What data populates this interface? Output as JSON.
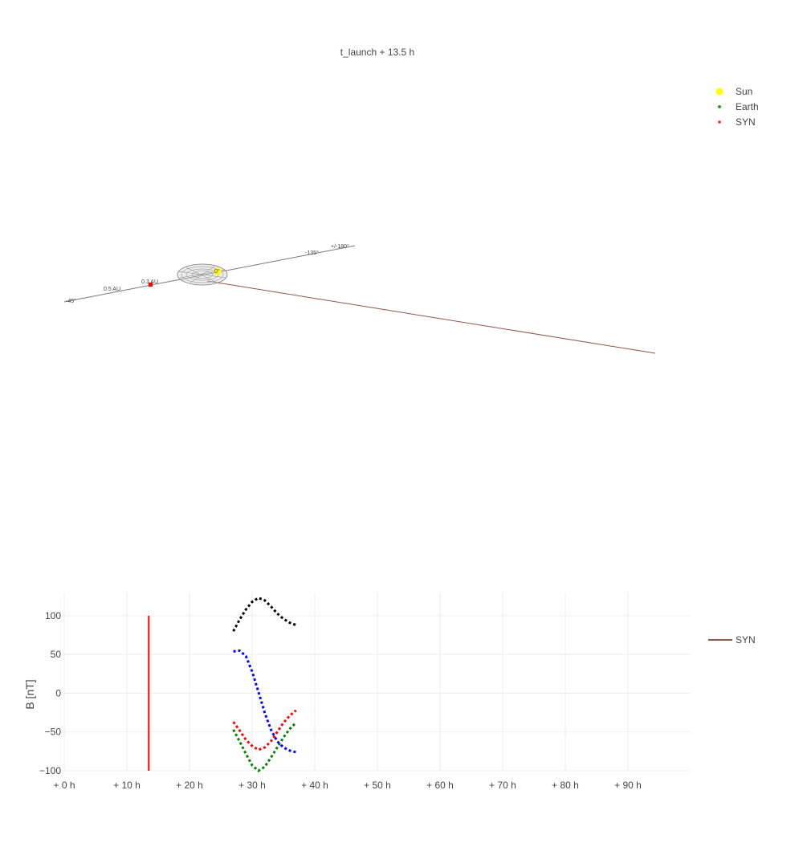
{
  "title": "t_launch + 13.5 h",
  "chart_data": [
    {
      "type": "scatter",
      "kind": "3d-orbit-scene",
      "legend_position": "top-right",
      "legend": [
        {
          "name": "Sun",
          "color": "#ffff00",
          "marker": "circle-large"
        },
        {
          "name": "Earth",
          "color": "#2ca02c",
          "marker": "circle-small"
        },
        {
          "name": "SYN",
          "color": "#ff0000",
          "marker": "square-small"
        }
      ],
      "annotations": [
        "0.5 AU",
        "0.3 AU",
        "+/-180°",
        "-45°",
        "-135°",
        "0°"
      ],
      "line_colors": {
        "axis": "#777777",
        "syn_track": "#8c564b",
        "cme_mesh": "#777777"
      }
    },
    {
      "type": "line",
      "ylabel": "B [nT]",
      "xlabel": "",
      "xlim": [
        0,
        100
      ],
      "ylim": [
        -100,
        130
      ],
      "x_ticks": [
        "+ 0 h",
        "+ 10 h",
        "+ 20 h",
        "+ 30 h",
        "+ 40 h",
        "+ 50 h",
        "+ 60 h",
        "+ 70 h",
        "+ 80 h",
        "+ 90 h"
      ],
      "x_tick_values": [
        0,
        10,
        20,
        30,
        40,
        50,
        60,
        70,
        80,
        90
      ],
      "y_ticks": [
        "100",
        "50",
        "0",
        "−50",
        "−100"
      ],
      "y_tick_values": [
        100,
        50,
        0,
        -50,
        -100
      ],
      "grid": true,
      "legend_position": "right",
      "legend": [
        {
          "name": "SYN",
          "color": "#8c564b"
        }
      ],
      "vline": {
        "x": 13.5,
        "y": [
          -100,
          100
        ],
        "color": "#ff0000"
      },
      "series": [
        {
          "color": "#000000",
          "dash": "dot",
          "x": [
            27,
            28,
            29,
            30,
            31,
            32,
            33,
            34,
            35,
            36,
            37
          ],
          "y": [
            80,
            95,
            108,
            118,
            123,
            120,
            112,
            103,
            96,
            91,
            88
          ]
        },
        {
          "color": "#0000ff",
          "dash": "dot",
          "x": [
            27,
            28,
            29,
            30,
            31,
            32,
            33,
            34,
            35,
            36,
            37
          ],
          "y": [
            54,
            55,
            48,
            28,
            2,
            -25,
            -47,
            -62,
            -70,
            -74,
            -76
          ]
        },
        {
          "color": "#ff0000",
          "dash": "dot",
          "x": [
            27,
            28,
            29,
            30,
            31,
            32,
            33,
            34,
            35,
            36,
            37
          ],
          "y": [
            -37,
            -48,
            -60,
            -68,
            -73,
            -70,
            -62,
            -50,
            -38,
            -29,
            -22
          ]
        },
        {
          "color": "#008000",
          "dash": "dot",
          "x": [
            27,
            28,
            29,
            30,
            31,
            32,
            33,
            34,
            35,
            36,
            37
          ],
          "y": [
            -47,
            -62,
            -78,
            -93,
            -100,
            -95,
            -83,
            -70,
            -57,
            -46,
            -38
          ]
        }
      ]
    }
  ]
}
